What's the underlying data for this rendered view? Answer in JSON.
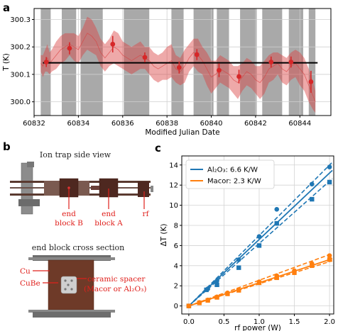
{
  "panels": {
    "a": "a",
    "b": "b",
    "c": "c"
  },
  "diagram": {
    "title_side": "Ion trap side view",
    "title_cross": "end block cross section",
    "label_end_block_b": [
      "end",
      "block B"
    ],
    "label_end_block_a": [
      "end",
      "block A"
    ],
    "label_rf": "rf",
    "label_cu": "Cu",
    "label_cube": "CuBe",
    "label_ceramic": [
      "ceramic spacer",
      "(Macor or Al₂O₃)"
    ]
  },
  "chart_data": [
    {
      "panel": "a",
      "type": "line",
      "xlabel": "Modified Julian Date",
      "ylabel": "T (K)",
      "xlim": [
        60832.0,
        60845.4
      ],
      "ylim": [
        299.95,
        300.34
      ],
      "xticks": [
        60832,
        60834,
        60836,
        60838,
        60840,
        60842,
        60844
      ],
      "xtick_labels": [
        "60832",
        "60834",
        "60836",
        "60838",
        "60840",
        "60842",
        "60844"
      ],
      "yticks": [
        300.0,
        300.1,
        300.2,
        300.3
      ],
      "ytick_labels": [
        "300.0",
        "300.1",
        "300.2",
        "300.3"
      ],
      "grid": true,
      "mean_line": {
        "y": 300.142,
        "x_range": [
          60832.4,
          60844.8
        ],
        "color": "#000000"
      },
      "shaded_intervals": [
        [
          60832.3,
          60832.75
        ],
        [
          60833.25,
          60833.9
        ],
        [
          60834.1,
          60835.1
        ],
        [
          60836.05,
          60837.2
        ],
        [
          60838.2,
          60838.75
        ],
        [
          60839.2,
          60840.1
        ],
        [
          60840.25,
          60840.8
        ],
        [
          60841.3,
          60842.05
        ],
        [
          60842.3,
          60843.2
        ],
        [
          60843.5,
          60844.15
        ],
        [
          60844.4,
          60844.7
        ]
      ],
      "shade_color": "#9a9a9a",
      "trace_color": "#d94040",
      "trace": {
        "x": [
          60832.3,
          60832.4,
          60832.5,
          60832.6,
          60832.7,
          60832.8,
          60833.0,
          60833.2,
          60833.4,
          60833.6,
          60833.8,
          60834.0,
          60834.2,
          60834.4,
          60834.6,
          60834.8,
          60835.0,
          60835.2,
          60835.4,
          60835.6,
          60835.8,
          60836.0,
          60836.2,
          60836.4,
          60836.6,
          60836.8,
          60837.0,
          60837.2,
          60837.4,
          60837.6,
          60837.8,
          60838.0,
          60838.2,
          60838.4,
          60838.6,
          60838.8,
          60839.0,
          60839.2,
          60839.4,
          60839.6,
          60839.8,
          60840.0,
          60840.2,
          60840.4,
          60840.6,
          60840.8,
          60841.0,
          60841.2,
          60841.4,
          60841.6,
          60841.8,
          60842.0,
          60842.2,
          60842.4,
          60842.6,
          60842.8,
          60843.0,
          60843.2,
          60843.4,
          60843.6,
          60843.8,
          60844.0,
          60844.2,
          60844.4,
          60844.6,
          60844.7
        ],
        "center": [
          300.14,
          300.13,
          300.15,
          300.16,
          300.14,
          300.15,
          300.17,
          300.19,
          300.2,
          300.21,
          300.2,
          300.19,
          300.22,
          300.25,
          300.24,
          300.22,
          300.18,
          300.16,
          300.18,
          300.2,
          300.19,
          300.17,
          300.16,
          300.15,
          300.16,
          300.17,
          300.16,
          300.15,
          300.13,
          300.12,
          300.13,
          300.14,
          300.15,
          300.12,
          300.11,
          300.13,
          300.16,
          300.18,
          300.17,
          300.15,
          300.12,
          300.09,
          300.1,
          300.12,
          300.11,
          300.1,
          300.08,
          300.07,
          300.09,
          300.11,
          300.1,
          300.08,
          300.07,
          300.09,
          300.12,
          300.13,
          300.14,
          300.12,
          300.11,
          300.13,
          300.14,
          300.12,
          300.1,
          300.06,
          300.02,
          300.0
        ],
        "spread": [
          0.03,
          0.04,
          0.04,
          0.05,
          0.04,
          0.04,
          0.05,
          0.05,
          0.05,
          0.04,
          0.05,
          0.05,
          0.05,
          0.06,
          0.06,
          0.05,
          0.05,
          0.05,
          0.05,
          0.06,
          0.06,
          0.05,
          0.05,
          0.05,
          0.05,
          0.05,
          0.04,
          0.05,
          0.05,
          0.05,
          0.05,
          0.06,
          0.06,
          0.05,
          0.05,
          0.06,
          0.05,
          0.05,
          0.06,
          0.05,
          0.06,
          0.06,
          0.05,
          0.05,
          0.05,
          0.05,
          0.05,
          0.06,
          0.05,
          0.05,
          0.05,
          0.05,
          0.06,
          0.06,
          0.05,
          0.05,
          0.04,
          0.05,
          0.05,
          0.05,
          0.05,
          0.06,
          0.06,
          0.06,
          0.05,
          0.04
        ]
      },
      "points": {
        "color": "#d62728",
        "x": [
          60832.55,
          60833.6,
          60835.55,
          60837.0,
          60838.55,
          60839.35,
          60840.35,
          60841.25,
          60842.7,
          60843.6,
          60844.5
        ],
        "y": [
          300.145,
          300.195,
          300.21,
          300.162,
          300.125,
          300.172,
          300.115,
          300.092,
          300.145,
          300.145,
          300.073
        ],
        "err": [
          0.018,
          0.022,
          0.03,
          0.018,
          0.022,
          0.02,
          0.025,
          0.025,
          0.02,
          0.02,
          0.04
        ]
      }
    },
    {
      "panel": "c",
      "type": "scatter",
      "xlabel": "rf power (W)",
      "ylabel": "ΔT (K)",
      "xlim": [
        -0.1,
        2.06
      ],
      "ylim": [
        -0.8,
        14.9
      ],
      "xticks": [
        0.0,
        0.5,
        1.0,
        1.5,
        2.0
      ],
      "xtick_labels": [
        "0.0",
        "0.5",
        "1.0",
        "1.5",
        "2.0"
      ],
      "yticks": [
        0,
        2,
        4,
        6,
        8,
        10,
        12,
        14
      ],
      "ytick_labels": [
        "0",
        "2",
        "4",
        "6",
        "8",
        "10",
        "12",
        "14"
      ],
      "grid": true,
      "legend": {
        "placement": "top-left"
      },
      "series": [
        {
          "name": "Al₂O₃: 6.6 K/W",
          "color": "#1f77b4",
          "slope": 6.6,
          "band_slopes": [
            6.2,
            7.0
          ],
          "circles": {
            "x": [
              0.0,
              0.27,
              0.4,
              0.71,
              1.0,
              1.25,
              1.75,
              2.0
            ],
            "y": [
              0.0,
              1.7,
              2.5,
              4.6,
              6.9,
              9.6,
              12.1,
              13.8
            ]
          },
          "squares": {
            "x": [
              0.0,
              0.25,
              0.4,
              0.71,
              1.0,
              1.25,
              1.75,
              2.0
            ],
            "y": [
              0.0,
              1.6,
              2.1,
              3.8,
              6.0,
              8.2,
              10.6,
              12.3
            ]
          }
        },
        {
          "name": "Macor: 2.3 K/W",
          "color": "#ff7f0e",
          "slope": 2.3,
          "band_slopes": [
            2.2,
            2.55
          ],
          "circles": {
            "x": [
              0.0,
              0.15,
              0.27,
              0.4,
              0.55,
              0.71,
              1.0,
              1.25,
              1.5,
              1.75,
              2.0
            ],
            "y": [
              0.0,
              0.35,
              0.6,
              0.9,
              1.3,
              1.6,
              2.4,
              3.0,
              3.5,
              4.2,
              5.0
            ]
          },
          "squares": {
            "x": [
              0.0,
              0.15,
              0.27,
              0.4,
              0.55,
              0.71,
              1.0,
              1.25,
              1.5,
              1.75,
              2.0
            ],
            "y": [
              0.0,
              0.3,
              0.55,
              0.85,
              1.2,
              1.55,
              2.3,
              2.8,
              3.3,
              4.0,
              4.6
            ]
          }
        }
      ]
    }
  ]
}
